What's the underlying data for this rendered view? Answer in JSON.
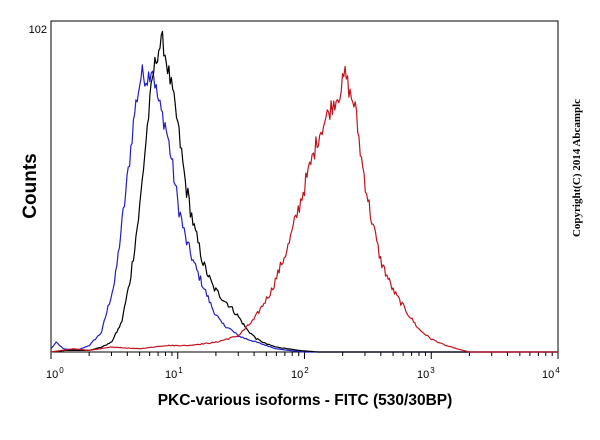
{
  "chart_data": {
    "type": "line",
    "xlabel": "PKC-various isoforms - FITC (530/30BP)",
    "ylabel": "Counts",
    "x_scale": "log",
    "xlim": [
      1,
      10000
    ],
    "ylim": [
      0,
      102
    ],
    "x_ticks": [
      {
        "base": "10",
        "exp": "0"
      },
      {
        "base": "10",
        "exp": "1"
      },
      {
        "base": "10",
        "exp": "2"
      },
      {
        "base": "10",
        "exp": "3"
      },
      {
        "base": "10",
        "exp": "4"
      }
    ],
    "y_tick_labels": [
      {
        "value": 102,
        "label": "102"
      }
    ],
    "watermark": "Copyright(C) 2014 Abcamplc",
    "series": [
      {
        "color": "#1f1fc8",
        "x": [
          1,
          1.1,
          1.25,
          1.6,
          2.0,
          2.5,
          3.2,
          4.0,
          4.6,
          5.2,
          5.7,
          6.3,
          6.8,
          7.4,
          8.0,
          8.8,
          10.0,
          11.5,
          13.5,
          16,
          19,
          22,
          26,
          30,
          35,
          42,
          50,
          60,
          75,
          100,
          10000
        ],
        "y": [
          1,
          3,
          1,
          0.5,
          2,
          6,
          22,
          53,
          75,
          86,
          84,
          88,
          80,
          74,
          70,
          61,
          46,
          35,
          27,
          20,
          13,
          9,
          7,
          5,
          4,
          3,
          2,
          1,
          0.5,
          0,
          0
        ]
      },
      {
        "color": "#000000",
        "x": [
          1,
          1.3,
          2.0,
          2.5,
          3.0,
          3.6,
          4.2,
          5.0,
          5.7,
          6.4,
          7.0,
          7.6,
          8.2,
          9.0,
          10.0,
          11.5,
          13.5,
          16,
          19,
          22,
          26,
          30,
          35,
          42,
          50,
          60,
          75,
          90,
          110,
          130,
          10000
        ],
        "y": [
          0,
          0.5,
          0.5,
          1.5,
          3,
          9,
          22,
          44,
          68,
          86,
          93,
          96,
          89,
          81,
          70,
          52,
          38,
          27,
          20,
          17,
          14,
          11,
          7,
          4,
          2.5,
          1.5,
          1,
          0.5,
          0.2,
          0,
          0
        ]
      },
      {
        "color": "#c0141e",
        "x": [
          1,
          1.5,
          2,
          3,
          5,
          8,
          12,
          20,
          30,
          40,
          55,
          75,
          100,
          130,
          160,
          190,
          210,
          230,
          250,
          280,
          330,
          400,
          500,
          650,
          800,
          1000,
          1300,
          1600,
          2000,
          10000
        ],
        "y": [
          0,
          1,
          0.5,
          1.5,
          1,
          2,
          2,
          3,
          5,
          10,
          19,
          33,
          51,
          67,
          75,
          80,
          86,
          79,
          76,
          60,
          43,
          28,
          19,
          12,
          7,
          4,
          2,
          1,
          0,
          0
        ]
      }
    ]
  }
}
